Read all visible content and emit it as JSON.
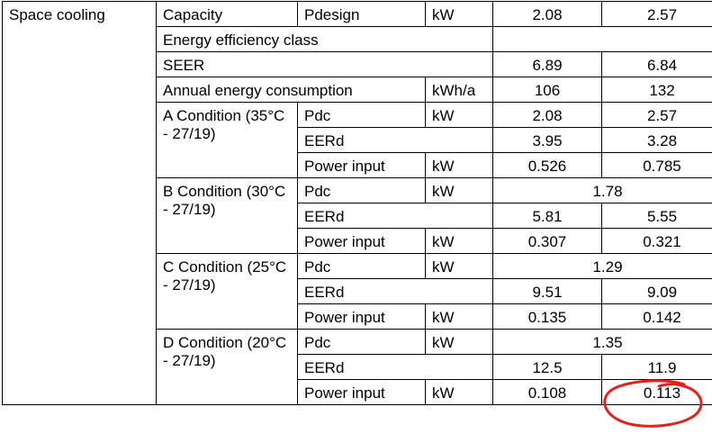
{
  "section": "Space cooling",
  "rows": {
    "capacity": {
      "label": "Capacity",
      "param": "Pdesign",
      "unit": "kW",
      "v1": "2.08",
      "v2": "2.57"
    },
    "energy_class": {
      "label": "Energy efficiency class"
    },
    "seer": {
      "label": "SEER",
      "v1": "6.89",
      "v2": "6.84"
    },
    "annual": {
      "label": "Annual energy consumption",
      "unit": "kWh/a",
      "v1": "106",
      "v2": "132"
    }
  },
  "conditions": [
    {
      "label": "A Condition (35°C - 27/19)",
      "pdc": {
        "label": "Pdc",
        "unit": "kW",
        "v1": "2.08",
        "v2": "2.57"
      },
      "eerd": {
        "label": "EERd",
        "v1": "3.95",
        "v2": "3.28"
      },
      "power": {
        "label": "Power input",
        "unit": "kW",
        "v1": "0.526",
        "v2": "0.785"
      }
    },
    {
      "label": "B Condition (30°C - 27/19)",
      "pdc": {
        "label": "Pdc",
        "unit": "kW",
        "merged": "1.78"
      },
      "eerd": {
        "label": "EERd",
        "v1": "5.81",
        "v2": "5.55"
      },
      "power": {
        "label": "Power input",
        "unit": "kW",
        "v1": "0.307",
        "v2": "0.321"
      }
    },
    {
      "label": "C Condition (25°C - 27/19)",
      "pdc": {
        "label": "Pdc",
        "unit": "kW",
        "merged": "1.29"
      },
      "eerd": {
        "label": "EERd",
        "v1": "9.51",
        "v2": "9.09"
      },
      "power": {
        "label": "Power input",
        "unit": "kW",
        "v1": "0.135",
        "v2": "0.142"
      }
    },
    {
      "label": "D Condition (20°C - 27/19)",
      "pdc": {
        "label": "Pdc",
        "unit": "kW",
        "merged": "1.35"
      },
      "eerd": {
        "label": "EERd",
        "v1": "12.5",
        "v2": "11.9"
      },
      "power": {
        "label": "Power input",
        "unit": "kW",
        "v1": "0.108",
        "v2": "0.113"
      }
    }
  ],
  "annotation": {
    "color": "#e8201c",
    "target": "D Condition power input 0.113"
  }
}
